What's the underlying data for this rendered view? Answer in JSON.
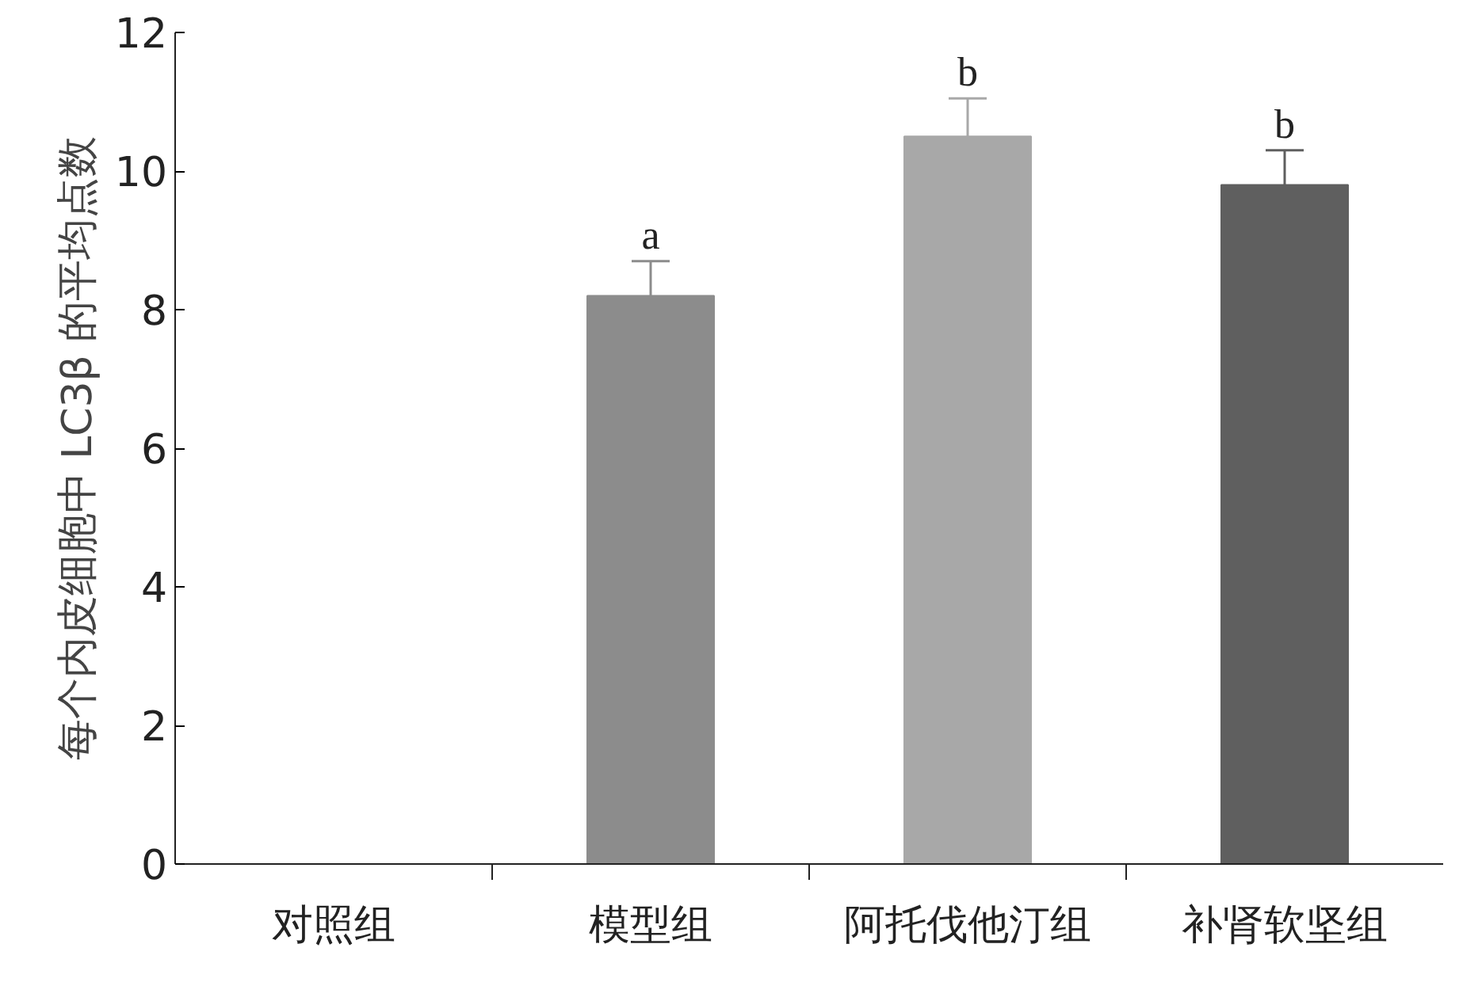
{
  "chart_data": {
    "type": "bar",
    "ylabel": "每个内皮细胞中 LC3β 的平均点数",
    "categories": [
      "对照组",
      "模型组",
      "阿托伐他汀组",
      "补肾软坚组"
    ],
    "values": [
      0,
      8.2,
      10.5,
      9.8
    ],
    "colors": [
      "#8c8c8c",
      "#8c8c8c",
      "#a8a8a8",
      "#5f5f5f"
    ],
    "errors": [
      null,
      [
        8.2,
        8.7
      ],
      [
        10.5,
        11.05
      ],
      [
        9.8,
        10.3
      ]
    ],
    "ylim": [
      0,
      12
    ],
    "yticks": [
      0,
      2,
      4,
      6,
      8,
      10,
      12
    ],
    "grid": false,
    "annotations": [
      {
        "text": "a",
        "x": "模型组",
        "y": 8.7
      },
      {
        "text": "b",
        "x": "阿托伐他汀组",
        "y": 11.05
      },
      {
        "text": "b",
        "x": "补肾软坚组",
        "y": 10.3
      }
    ]
  }
}
